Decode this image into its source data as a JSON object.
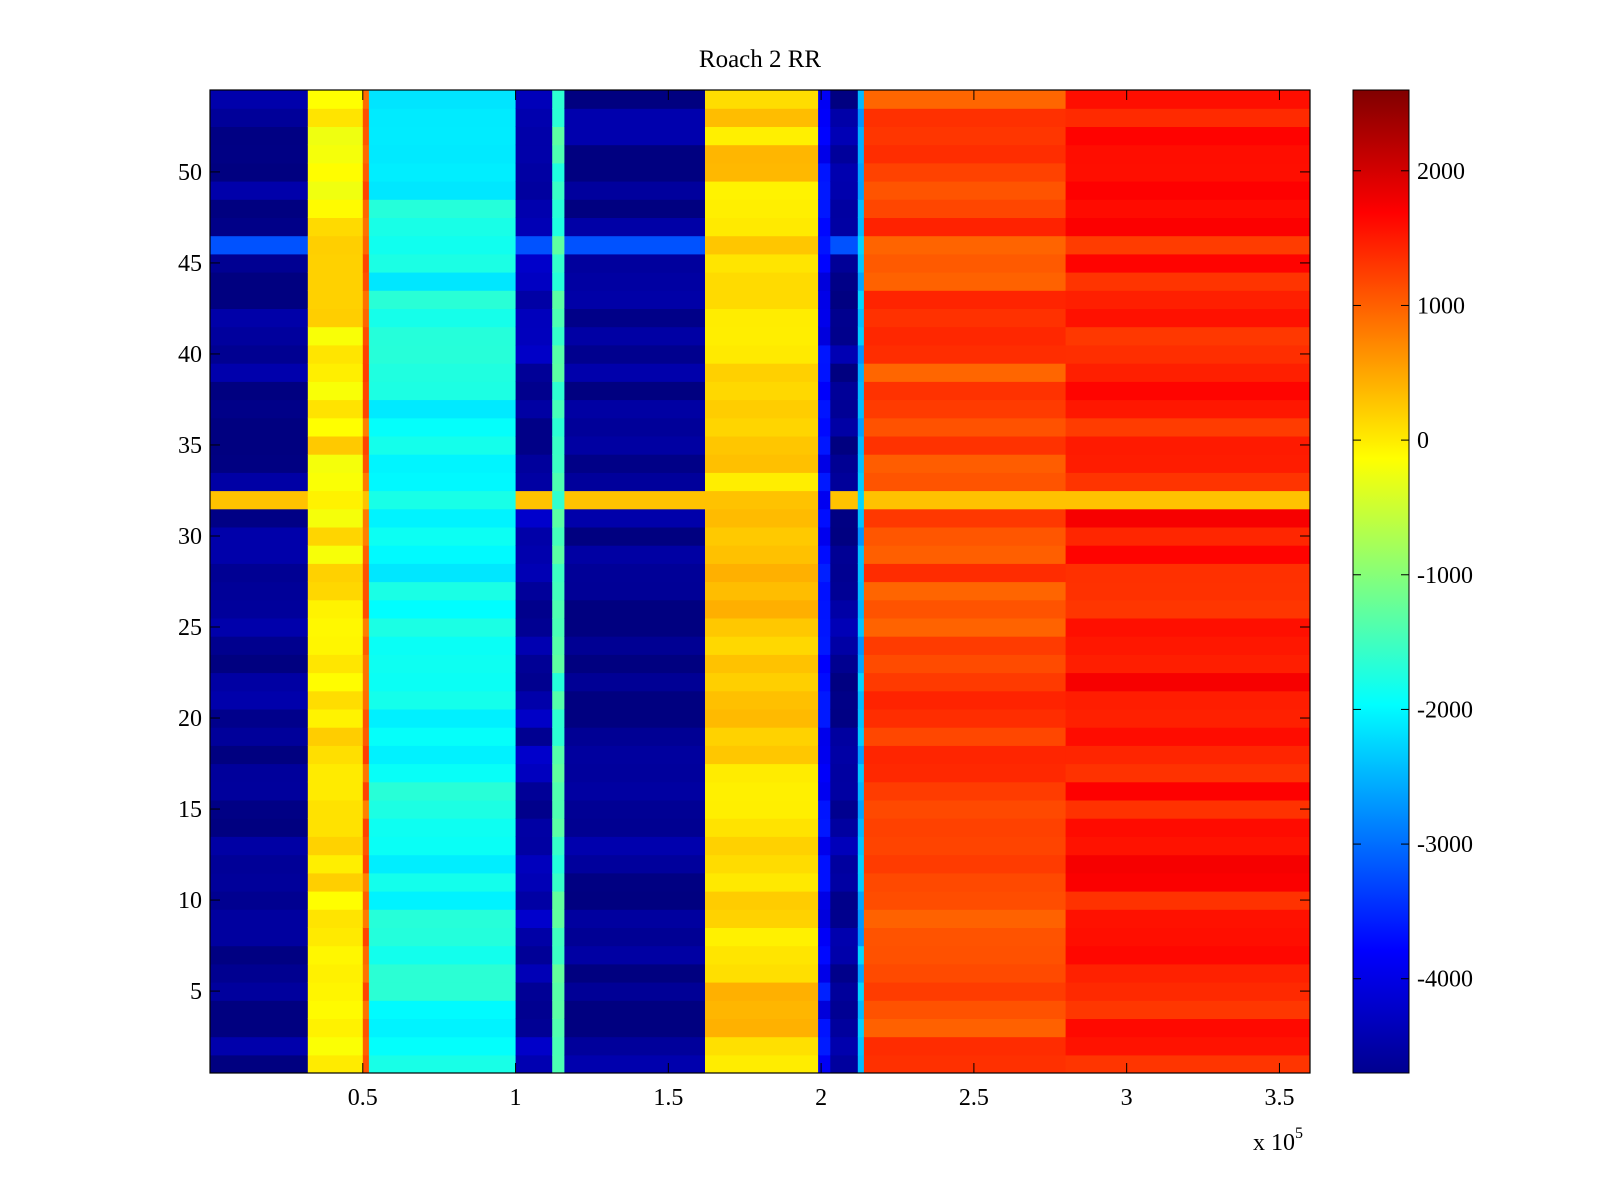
{
  "chart_data": {
    "type": "heatmap",
    "title": "Roach 2 RR",
    "xlabel": "",
    "ylabel": "",
    "x_exponent_label": "x 10",
    "x_exponent_power": "5",
    "xlim": [
      0,
      3.6
    ],
    "ylim": [
      0.5,
      54.5
    ],
    "x_ticks": [
      0.5,
      1,
      1.5,
      2,
      2.5,
      3,
      3.5
    ],
    "x_tick_labels": [
      "0.5",
      "1",
      "1.5",
      "2",
      "2.5",
      "3",
      "3.5"
    ],
    "y_ticks": [
      5,
      10,
      15,
      20,
      25,
      30,
      35,
      40,
      45,
      50
    ],
    "y_tick_labels": [
      "5",
      "10",
      "15",
      "20",
      "25",
      "30",
      "35",
      "40",
      "45",
      "50"
    ],
    "colormap": "jet",
    "colorbar": {
      "range": [
        -4700,
        2600
      ],
      "ticks": [
        -4000,
        -3000,
        -2000,
        -1000,
        0,
        1000,
        2000
      ],
      "tick_labels": [
        "-4000",
        "-3000",
        "-2000",
        "-1000",
        "0",
        "1000",
        "2000"
      ]
    },
    "column_bands": [
      {
        "x_start": 0.0,
        "x_end": 0.32,
        "value": -4600
      },
      {
        "x_start": 0.32,
        "x_end": 0.5,
        "value": 0
      },
      {
        "x_start": 0.5,
        "x_end": 0.52,
        "value": 1000
      },
      {
        "x_start": 0.52,
        "x_end": 1.0,
        "value": -1900
      },
      {
        "x_start": 1.0,
        "x_end": 1.12,
        "value": -4400
      },
      {
        "x_start": 1.12,
        "x_end": 1.16,
        "value": -1500
      },
      {
        "x_start": 1.16,
        "x_end": 1.62,
        "value": -4600
      },
      {
        "x_start": 1.62,
        "x_end": 1.99,
        "value": 200
      },
      {
        "x_start": 1.99,
        "x_end": 2.03,
        "value": -3800
      },
      {
        "x_start": 2.03,
        "x_end": 2.12,
        "value": -4500
      },
      {
        "x_start": 2.12,
        "x_end": 2.14,
        "value": -2500
      },
      {
        "x_start": 2.14,
        "x_end": 2.8,
        "value": 1200
      },
      {
        "x_start": 2.8,
        "x_end": 3.6,
        "value": 1500
      }
    ],
    "notable_rows": [
      {
        "row": 32,
        "description": "flat row with near-constant value across all x",
        "value": 300
      },
      {
        "row": 46,
        "description": "elevated values in low-x blue region",
        "value": -3200
      }
    ]
  }
}
